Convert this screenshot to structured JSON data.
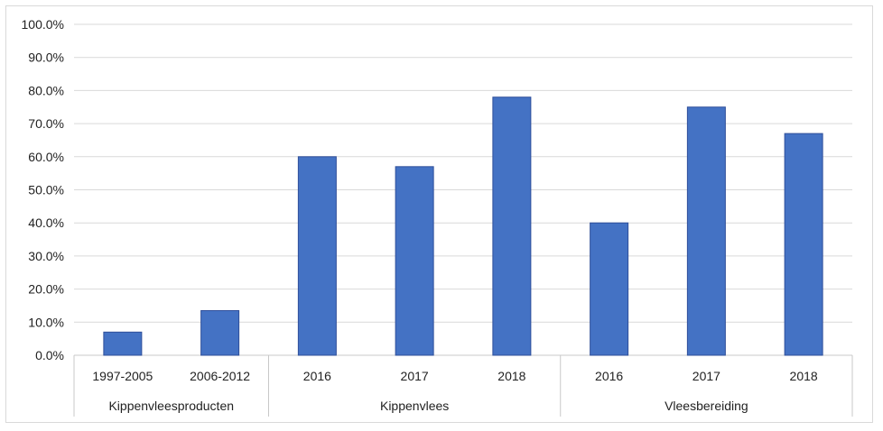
{
  "chart_data": {
    "type": "bar",
    "ylim": [
      0,
      1
    ],
    "y_ticks": [
      0,
      0.1,
      0.2,
      0.3,
      0.4,
      0.5,
      0.6,
      0.7,
      0.8,
      0.9,
      1.0
    ],
    "y_tick_labels": [
      "0.0%",
      "10.0%",
      "20.0%",
      "30.0%",
      "40.0%",
      "50.0%",
      "60.0%",
      "70.0%",
      "80.0%",
      "90.0%",
      "100.0%"
    ],
    "grid": true,
    "bar_color": "#4472C4",
    "groups": [
      {
        "name": "Kippenvleesproducten",
        "categories": [
          "1997-2005",
          "2006-2012"
        ],
        "values": [
          0.07,
          0.135
        ]
      },
      {
        "name": "Kippenvlees",
        "categories": [
          "2016",
          "2017",
          "2018"
        ],
        "values": [
          0.6,
          0.57,
          0.78
        ]
      },
      {
        "name": "Vleesbereiding",
        "categories": [
          "2016",
          "2017",
          "2018"
        ],
        "values": [
          0.4,
          0.75,
          0.67
        ]
      }
    ]
  }
}
